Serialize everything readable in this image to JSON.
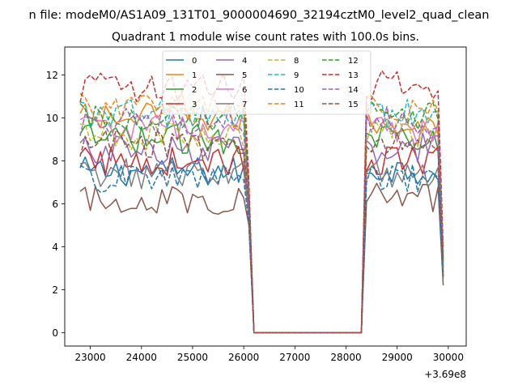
{
  "figure": {
    "suptitle": "n file: modeM0/AS1A09_131T01_9000004690_32194cztM0_level2_quad_clean",
    "title": "Quadrant 1 module wise count rates with 100.0s bins."
  },
  "colors": {
    "tab10": [
      "#1f77b4",
      "#ff7f0e",
      "#2ca02c",
      "#d62728",
      "#9467bd",
      "#8c564b",
      "#e377c2",
      "#7f7f7f",
      "#bcbd22",
      "#17becf"
    ]
  },
  "chart_data": {
    "type": "line",
    "title": "Quadrant 1 module wise count rates with 100.0s bins.",
    "xlabel": "",
    "ylabel": "",
    "x_offset_label": "+3.69e8",
    "xlim": [
      22500,
      30350
    ],
    "ylim": [
      -0.62,
      13.3
    ],
    "xticks": [
      23000,
      24000,
      25000,
      26000,
      27000,
      28000,
      29000,
      30000
    ],
    "yticks": [
      0,
      2,
      4,
      6,
      8,
      10,
      12
    ],
    "legend_position": "upper center",
    "legend_columns": 4,
    "segments": [
      {
        "x_start": 22800,
        "x_end": 26100,
        "step": 100
      },
      {
        "x_start": 26200,
        "x_end": 28300,
        "step": 100
      },
      {
        "x_start": 28400,
        "x_end": 29900,
        "step": 100
      }
    ],
    "series": [
      {
        "name": "0",
        "linestyle": "solid",
        "levels": [
          7.5,
          0,
          7.6
        ],
        "ends": [
          5.5,
          2.6
        ]
      },
      {
        "name": "1",
        "linestyle": "solid",
        "levels": [
          10.0,
          0,
          9.8
        ],
        "ends": [
          6.5,
          3.0
        ]
      },
      {
        "name": "2",
        "linestyle": "solid",
        "levels": [
          9.0,
          0,
          9.2
        ],
        "ends": [
          6.0,
          2.8
        ]
      },
      {
        "name": "3",
        "linestyle": "solid",
        "levels": [
          8.0,
          0,
          8.0
        ],
        "ends": [
          5.6,
          2.7
        ]
      },
      {
        "name": "4",
        "linestyle": "solid",
        "levels": [
          8.5,
          0,
          8.6
        ],
        "ends": [
          5.8,
          3.0
        ]
      },
      {
        "name": "5",
        "linestyle": "solid",
        "levels": [
          6.2,
          0,
          6.3
        ],
        "ends": [
          5.0,
          2.2
        ]
      },
      {
        "name": "6",
        "linestyle": "solid",
        "levels": [
          9.5,
          0,
          9.4
        ],
        "ends": [
          6.2,
          3.2
        ]
      },
      {
        "name": "7",
        "linestyle": "solid",
        "levels": [
          7.4,
          0,
          7.4
        ],
        "ends": [
          5.3,
          2.5
        ]
      },
      {
        "name": "8",
        "linestyle": "dashed",
        "levels": [
          9.2,
          0,
          9.3
        ],
        "ends": [
          6.3,
          3.4
        ]
      },
      {
        "name": "9",
        "linestyle": "dashed",
        "levels": [
          10.2,
          0,
          10.2
        ],
        "ends": [
          6.6,
          3.6
        ]
      },
      {
        "name": "10",
        "linestyle": "dashed",
        "levels": [
          7.2,
          0,
          7.2
        ],
        "ends": [
          5.1,
          2.6
        ]
      },
      {
        "name": "11",
        "linestyle": "dashed",
        "levels": [
          10.5,
          0,
          10.4
        ],
        "ends": [
          6.8,
          3.5
        ]
      },
      {
        "name": "12",
        "linestyle": "dashed",
        "levels": [
          10.0,
          0,
          10.1
        ],
        "ends": [
          6.6,
          3.5
        ]
      },
      {
        "name": "13",
        "linestyle": "dashed",
        "levels": [
          11.4,
          0,
          11.5
        ],
        "ends": [
          7.0,
          4.0
        ]
      },
      {
        "name": "14",
        "linestyle": "dashed",
        "levels": [
          9.8,
          0,
          9.9
        ],
        "ends": [
          6.5,
          3.8
        ]
      },
      {
        "name": "15",
        "linestyle": "dashed",
        "levels": [
          8.8,
          0,
          8.9
        ],
        "ends": [
          6.0,
          3.2
        ]
      }
    ]
  }
}
